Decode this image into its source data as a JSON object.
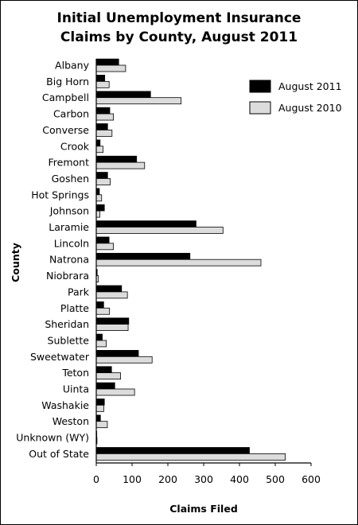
{
  "chart_data": {
    "type": "bar",
    "orientation": "horizontal",
    "title": [
      "Initial Unemployment Insurance",
      "Claims by County, August 2011"
    ],
    "xlabel": "Claims Filed",
    "ylabel": "County",
    "xlim": [
      0,
      600
    ],
    "xticks": [
      "0",
      "100",
      "200",
      "300",
      "400",
      "500",
      "600"
    ],
    "legend_position": "top-right",
    "grid": false,
    "categories": [
      "Albany",
      "Big Horn",
      "Campbell",
      "Carbon",
      "Converse",
      "Crook",
      "Fremont",
      "Goshen",
      "Hot Springs",
      "Johnson",
      "Laramie",
      "Lincoln",
      "Natrona",
      "Niobrara",
      "Park",
      "Platte",
      "Sheridan",
      "Sublette",
      "Sweetwater",
      "Teton",
      "Uinta",
      "Washakie",
      "Weston",
      "Unknown (WY)",
      "Out of State"
    ],
    "series": [
      {
        "name": "August 2011",
        "color": "#000000",
        "values": [
          63,
          24,
          152,
          38,
          32,
          11,
          113,
          32,
          9,
          23,
          279,
          36,
          262,
          3,
          71,
          21,
          91,
          17,
          118,
          43,
          52,
          23,
          12,
          1,
          428
        ]
      },
      {
        "name": "August 2010",
        "color": "#dcdcdc",
        "values": [
          82,
          36,
          237,
          48,
          44,
          19,
          135,
          39,
          15,
          10,
          354,
          48,
          460,
          6,
          87,
          37,
          89,
          28,
          156,
          68,
          107,
          21,
          31,
          2,
          528
        ]
      }
    ]
  }
}
